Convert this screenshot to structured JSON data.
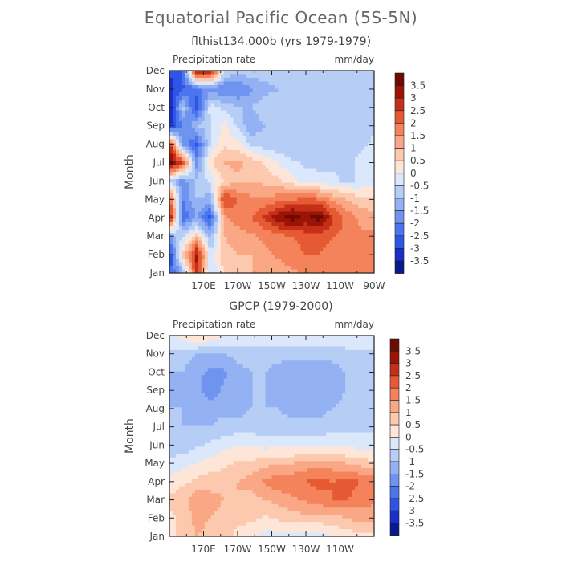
{
  "title": "Equatorial Pacific Ocean (5S-5N)",
  "colors": {
    "palette": [
      "#0a1a8c",
      "#1a2fc8",
      "#2f55e6",
      "#4a75ee",
      "#6f94f0",
      "#93b1f3",
      "#b6cdf6",
      "#dbe8fb",
      "#fde6d8",
      "#fcc8ae",
      "#f9a784",
      "#f4825b",
      "#e55a33",
      "#c43017",
      "#9b1406",
      "#6e0a04"
    ]
  },
  "chart_data": [
    {
      "type": "heatmap",
      "title": "flthist134.000b (yrs 1979-1979)",
      "left_label": "Precipitation rate",
      "right_label": "mm/day",
      "ylabel": "Month",
      "xlabel": "",
      "months": [
        "Jan",
        "Feb",
        "Mar",
        "Apr",
        "May",
        "Jun",
        "Jul",
        "Aug",
        "Sep",
        "Oct",
        "Nov",
        "Dec"
      ],
      "x_ticks": [
        "170E",
        "170W",
        "150W",
        "130W",
        "110W",
        "90W"
      ],
      "xlim": [
        150,
        270
      ],
      "x_tick_values": [
        170,
        190,
        210,
        230,
        250,
        270
      ],
      "colorbar_labels": [
        "3.5",
        "3",
        "2.5",
        "2",
        "1.5",
        "1",
        "0.5",
        "0",
        "-0.5",
        "-1",
        "-1.5",
        "-2",
        "-2.5",
        "-3",
        "-3.5"
      ],
      "values": [
        [
          -2.6,
          -1.2,
          2.8,
          -0.6,
          0.6,
          0.8,
          1.0,
          1.2,
          1.2,
          1.4,
          1.6,
          1.6,
          1.8,
          2.0,
          1.8,
          1.9
        ],
        [
          -3.0,
          0.6,
          3.2,
          -0.4,
          0.8,
          1.0,
          1.0,
          1.4,
          1.6,
          1.8,
          2.0,
          2.0,
          1.8,
          1.6,
          1.6,
          1.8
        ],
        [
          -1.5,
          -0.5,
          0.8,
          -1.2,
          1.0,
          1.2,
          1.4,
          1.6,
          1.8,
          2.0,
          2.2,
          2.2,
          2.0,
          1.8,
          1.6,
          1.6
        ],
        [
          3.4,
          -2.4,
          -1.5,
          -2.8,
          1.4,
          1.8,
          2.0,
          2.6,
          3.4,
          3.8,
          3.4,
          3.8,
          2.6,
          1.8,
          1.4,
          1.2
        ],
        [
          2.2,
          -2.0,
          -1.0,
          -1.2,
          2.6,
          2.0,
          1.6,
          1.6,
          1.8,
          2.0,
          2.2,
          2.0,
          1.4,
          1.0,
          0.6,
          0.6
        ],
        [
          -0.5,
          -1.8,
          -0.8,
          -0.4,
          0.6,
          0.8,
          1.0,
          0.8,
          0.6,
          0.2,
          -0.2,
          -0.4,
          -0.4,
          -0.6,
          -0.4,
          -0.2
        ],
        [
          3.8,
          2.4,
          -1.8,
          0.4,
          1.0,
          1.2,
          0.8,
          0.4,
          0.0,
          -0.4,
          -0.6,
          -0.6,
          -0.6,
          -0.6,
          -0.4,
          -0.2
        ],
        [
          2.8,
          -1.6,
          -2.6,
          -0.4,
          0.4,
          0.2,
          -0.6,
          -0.8,
          -1.0,
          -1.0,
          -1.0,
          -1.0,
          -0.8,
          -0.8,
          -0.6,
          -0.4
        ],
        [
          -3.2,
          -2.0,
          -1.0,
          -0.6,
          0.2,
          -0.6,
          -1.4,
          -1.0,
          -0.8,
          -1.0,
          -1.0,
          -1.0,
          -1.0,
          -0.8,
          -0.8,
          -0.6
        ],
        [
          -3.4,
          -0.8,
          -3.0,
          -0.2,
          -0.6,
          -1.0,
          -1.0,
          -0.6,
          -0.8,
          -1.0,
          -1.0,
          -1.0,
          -1.0,
          -1.0,
          -0.8,
          -0.8
        ],
        [
          -3.2,
          -2.6,
          -2.2,
          -1.8,
          -2.0,
          -2.0,
          -1.6,
          -1.2,
          -1.0,
          -1.0,
          -1.0,
          -1.0,
          -1.0,
          -1.0,
          -0.8,
          -0.8
        ],
        [
          -3.0,
          -2.4,
          3.6,
          3.4,
          -0.4,
          -0.8,
          -0.6,
          -0.6,
          -0.8,
          -0.8,
          -1.0,
          -1.0,
          -1.0,
          -1.0,
          -0.8,
          -0.8
        ]
      ]
    },
    {
      "type": "heatmap",
      "title": "GPCP (1979-2000)",
      "left_label": "Precipitation rate",
      "right_label": "mm/day",
      "ylabel": "Month",
      "xlabel": "",
      "months": [
        "Jan",
        "Feb",
        "Mar",
        "Apr",
        "May",
        "Jun",
        "Jul",
        "Aug",
        "Sep",
        "Oct",
        "Nov",
        "Dec"
      ],
      "x_ticks": [
        "170E",
        "170W",
        "150W",
        "130W",
        "110W"
      ],
      "xlim": [
        150,
        270
      ],
      "x_tick_values": [
        170,
        190,
        210,
        230,
        250
      ],
      "colorbar_labels": [
        "3.5",
        "3",
        "2.5",
        "2",
        "1.5",
        "1",
        "0.5",
        "0",
        "-0.5",
        "-1",
        "-1.5",
        "-2",
        "-2.5",
        "-3",
        "-3.5"
      ],
      "values": [
        [
          0.4,
          0.6,
          1.0,
          0.8,
          0.6,
          0.4,
          0.2,
          -0.2,
          -0.2,
          -0.2,
          -0.2,
          -0.2,
          0.0,
          0.2,
          0.4,
          0.4
        ],
        [
          0.4,
          0.6,
          1.2,
          1.0,
          0.8,
          0.6,
          0.6,
          0.4,
          0.6,
          0.8,
          0.8,
          0.8,
          0.8,
          1.0,
          1.2,
          1.2
        ],
        [
          0.6,
          0.8,
          1.4,
          1.2,
          1.0,
          1.0,
          0.8,
          1.0,
          1.2,
          1.4,
          1.6,
          1.8,
          2.0,
          2.0,
          1.8,
          1.6
        ],
        [
          0.2,
          0.4,
          0.6,
          0.8,
          0.8,
          1.0,
          1.2,
          1.6,
          1.8,
          1.8,
          2.0,
          2.2,
          2.0,
          2.2,
          2.0,
          1.8
        ],
        [
          -0.4,
          -0.2,
          0.0,
          0.2,
          0.4,
          0.6,
          0.6,
          0.8,
          1.0,
          1.0,
          1.2,
          1.2,
          1.2,
          1.0,
          0.8,
          0.6
        ],
        [
          -0.8,
          -0.8,
          -0.6,
          -0.4,
          -0.2,
          0.0,
          0.0,
          -0.2,
          -0.2,
          -0.2,
          -0.2,
          -0.2,
          -0.2,
          -0.2,
          -0.2,
          -0.2
        ],
        [
          -0.8,
          -1.0,
          -1.0,
          -1.0,
          -0.8,
          -0.8,
          -0.8,
          -0.8,
          -0.8,
          -0.8,
          -0.8,
          -0.8,
          -0.6,
          -0.6,
          -0.6,
          -0.6
        ],
        [
          -1.0,
          -1.0,
          -1.2,
          -1.2,
          -1.2,
          -1.2,
          -1.0,
          -1.0,
          -1.0,
          -1.2,
          -1.2,
          -1.2,
          -1.0,
          -0.8,
          -0.8,
          -0.8
        ],
        [
          -1.2,
          -1.0,
          -1.4,
          -1.8,
          -1.4,
          -1.2,
          -1.0,
          -1.0,
          -1.2,
          -1.4,
          -1.4,
          -1.4,
          -1.2,
          -1.0,
          -0.8,
          -0.8
        ],
        [
          -1.0,
          -1.0,
          -1.4,
          -1.6,
          -1.6,
          -1.2,
          -1.0,
          -1.0,
          -1.2,
          -1.4,
          -1.4,
          -1.4,
          -1.2,
          -1.0,
          -0.8,
          -0.8
        ],
        [
          -0.6,
          -0.8,
          -1.0,
          -1.0,
          -1.0,
          -0.8,
          -0.8,
          -0.8,
          -0.8,
          -0.8,
          -0.8,
          -0.8,
          -0.8,
          -0.6,
          -0.6,
          -0.6
        ],
        [
          -0.2,
          0.2,
          0.6,
          0.4,
          0.0,
          -0.2,
          -0.2,
          -0.2,
          -0.2,
          -0.2,
          -0.2,
          -0.2,
          -0.2,
          -0.2,
          -0.2,
          -0.2
        ]
      ]
    }
  ]
}
